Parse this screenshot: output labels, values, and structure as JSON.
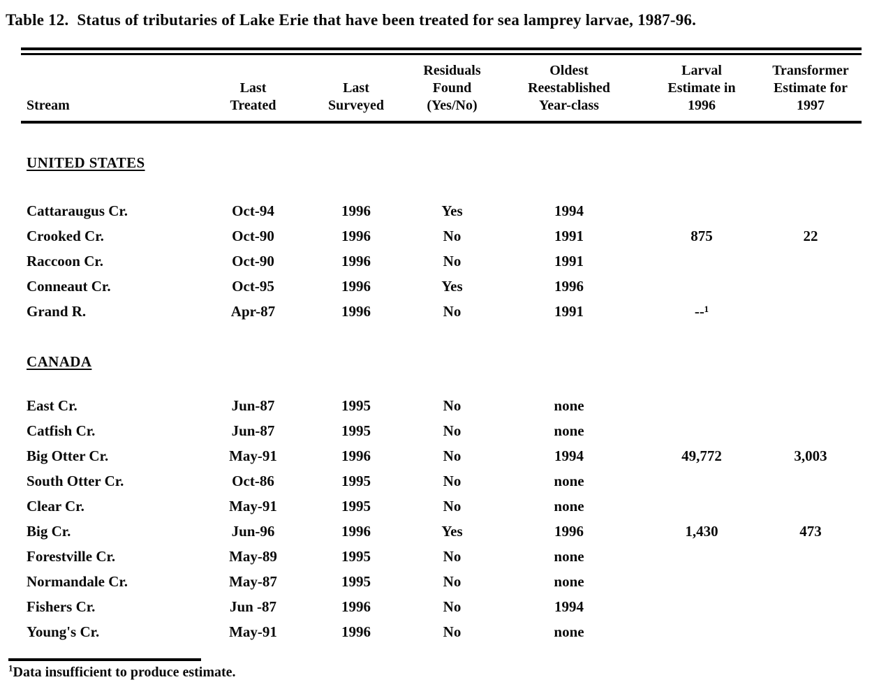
{
  "title": "Table 12.  Status of tributaries of Lake Erie that have been treated for sea lamprey larvae, 1987-96.",
  "table": {
    "columns": [
      "Stream",
      "Last\nTreated",
      "Last\nSurveyed",
      "Residuals\nFound\n(Yes/No)",
      "Oldest\nReestablished\nYear-class",
      "Larval\nEstimate in\n1996",
      "Transformer\nEstimate for\n1997"
    ],
    "column_keys": [
      "stream",
      "last-treated",
      "last-surveyed",
      "residuals-found",
      "oldest-reestablished-year-class",
      "larval-estimate-1996",
      "transformer-estimate-1997"
    ],
    "sections": [
      {
        "name": "UNITED STATES",
        "rows": [
          [
            "Cattaraugus Cr.",
            "Oct-94",
            "1996",
            "Yes",
            "1994",
            "",
            ""
          ],
          [
            "Crooked Cr.",
            "Oct-90",
            "1996",
            "No",
            "1991",
            "875",
            "22"
          ],
          [
            "Raccoon Cr.",
            "Oct-90",
            "1996",
            "No",
            "1991",
            "",
            ""
          ],
          [
            "Conneaut Cr.",
            "Oct-95",
            "1996",
            "Yes",
            "1996",
            "",
            ""
          ],
          [
            "Grand R.",
            "Apr-87",
            "1996",
            "No",
            "1991",
            "--¹",
            ""
          ]
        ]
      },
      {
        "name": "CANADA",
        "rows": [
          [
            "East Cr.",
            "Jun-87",
            "1995",
            "No",
            "none",
            "",
            ""
          ],
          [
            "Catfish Cr.",
            "Jun-87",
            "1995",
            "No",
            "none",
            "",
            ""
          ],
          [
            "Big Otter Cr.",
            "May-91",
            "1996",
            "No",
            "1994",
            "49,772",
            "3,003"
          ],
          [
            "South Otter Cr.",
            "Oct-86",
            "1995",
            "No",
            "none",
            "",
            ""
          ],
          [
            "Clear Cr.",
            "May-91",
            "1995",
            "No",
            "none",
            "",
            ""
          ],
          [
            "Big Cr.",
            "Jun-96",
            "1996",
            "Yes",
            "1996",
            "1,430",
            "473"
          ],
          [
            "Forestville Cr.",
            "May-89",
            "1995",
            "No",
            "none",
            "",
            ""
          ],
          [
            "Normandale Cr.",
            "May-87",
            "1995",
            "No",
            "none",
            "",
            ""
          ],
          [
            "Fishers Cr.",
            "Jun -87",
            "1996",
            "No",
            "1994",
            "",
            ""
          ],
          [
            "Young's Cr.",
            "May-91",
            "1996",
            "No",
            "none",
            "",
            ""
          ]
        ]
      }
    ]
  },
  "footnote": {
    "marker": "1",
    "text": "Data insufficient to produce estimate."
  },
  "colors": {
    "ink": "#0a0a0a",
    "paper": "#ffffff"
  }
}
